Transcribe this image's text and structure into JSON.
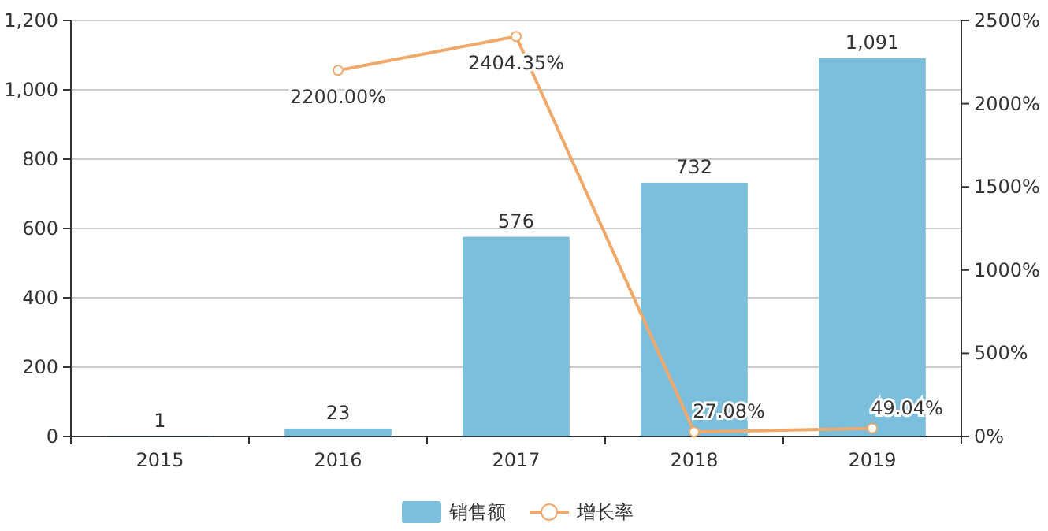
{
  "chart_data": {
    "type": "bar",
    "categories": [
      "2015",
      "2016",
      "2017",
      "2018",
      "2019"
    ],
    "series": [
      {
        "name": "销售额",
        "color": "#7bbfdc",
        "values": [
          1,
          23,
          576,
          732,
          1091
        ],
        "value_labels": [
          "1",
          "23",
          "576",
          "732",
          "1,091"
        ]
      },
      {
        "name": "增长率",
        "type": "line",
        "axis": "y2",
        "color": "#f0a96b",
        "marker": "circle",
        "values": [
          null,
          2200,
          2404.35,
          27.08,
          49.04
        ],
        "value_labels": [
          null,
          "2200.00%",
          "2404.35%",
          "27.08%",
          "49.04%"
        ]
      }
    ],
    "ylim": [
      0,
      1200
    ],
    "yticks": [
      0,
      200,
      400,
      600,
      800,
      {
        "value": 1000,
        "label": "1,000"
      },
      {
        "value": 1200,
        "label": "1,200"
      }
    ],
    "y2lim": [
      0,
      2500
    ],
    "y2ticks": [
      {
        "value": 0,
        "label": "0%"
      },
      {
        "value": 500,
        "label": "500%"
      },
      {
        "value": 1000,
        "label": "1000%"
      },
      {
        "value": 1500,
        "label": "1500%"
      },
      {
        "value": 2000,
        "label": "2000%"
      },
      {
        "value": 2500,
        "label": "2500%"
      }
    ],
    "grid": "y",
    "legend": "bottom"
  }
}
